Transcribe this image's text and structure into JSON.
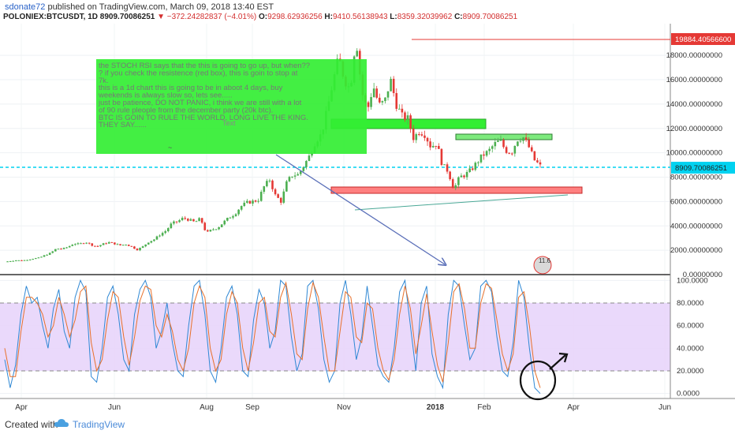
{
  "header": {
    "user": "sdonate72",
    "published": " published on TradingView.com, March 09, 2018 13:40 EST",
    "symbol": "POLONIEX:BTCUSDT, 1D",
    "last": "8909.70086251",
    "change": "▼ −372.24282837 (−4.01%)",
    "ohlc_o_label": "O:",
    "ohlc_o": "9298.62936256",
    "ohlc_h_label": "H:",
    "ohlc_h": "9410.56138943",
    "ohlc_l_label": "L:",
    "ohlc_l": "8359.32039962",
    "ohlc_c_label": "C:",
    "ohlc_c": "8909.70086251"
  },
  "colors": {
    "up": "#4caf50",
    "down": "#e53935",
    "rsi_fast": "#2f88d4",
    "rsi_slow": "#e8702a",
    "band_fill": "#e8d5fb",
    "note_bg": "#33ee33",
    "last_price": "#00d2f0",
    "resistance": "#ff8080",
    "support_box": "#7dea7d"
  },
  "annotation": {
    "lines": [
      "the STOCH RSI says that the this is going to go up, but when??",
      "? if you check the resistence (red box), this is goin to stop at",
      "7k.",
      "this is a 1d chart this is going to be in aboot 4 days, buy",
      "weekends is always slow so, lets see.....",
      "",
      "just be patience, DO NOT PANIC, i think we are still with a lot",
      "of 90 rule pleople from the december party (20k btc).",
      "",
      "BTC IS GOIN TO RULE THE WORLD. LONG LIVE THE KING.",
      "",
      "THEY SAY......"
    ],
    "text_tag": "Text",
    "marker": "11.6"
  },
  "price_labels": {
    "high_tag": "19884.40566600",
    "last_tag": "8909.70086251"
  },
  "footer": {
    "created_with": "Created with",
    "brand": "TradingView"
  },
  "chart_data": [
    {
      "type": "candlestick",
      "title": "POLONIEX:BTCUSDT, 1D",
      "x_tick_labels": [
        "Apr",
        "Jun",
        "Aug",
        "Sep",
        "Nov",
        "2018",
        "Feb",
        "Apr",
        "Jun"
      ],
      "y_tick_labels": [
        "0.00000000",
        "2000.00000000",
        "4000.00000000",
        "6000.00000000",
        "8000.00000000",
        "10000.00000000",
        "12000.00000000",
        "14000.00000000",
        "16000.00000000",
        "18000.00000000"
      ],
      "ylim": [
        0,
        20600
      ],
      "grid": true,
      "close_series": [
        [
          0,
          1050
        ],
        [
          7,
          1120
        ],
        [
          14,
          1180
        ],
        [
          21,
          1150
        ],
        [
          28,
          1230
        ],
        [
          35,
          1320
        ],
        [
          42,
          1380
        ],
        [
          49,
          1600
        ],
        [
          56,
          1780
        ],
        [
          63,
          2150
        ],
        [
          70,
          2100
        ],
        [
          77,
          2280
        ],
        [
          84,
          2550
        ],
        [
          91,
          2500
        ],
        [
          98,
          2700
        ],
        [
          105,
          2450
        ],
        [
          112,
          2300
        ],
        [
          119,
          2500
        ],
        [
          126,
          2650
        ],
        [
          133,
          2550
        ],
        [
          140,
          2400
        ],
        [
          147,
          2500
        ],
        [
          154,
          2300
        ],
        [
          161,
          2050
        ],
        [
          168,
          2300
        ],
        [
          175,
          2700
        ],
        [
          182,
          2900
        ],
        [
          189,
          3300
        ],
        [
          196,
          3600
        ],
        [
          203,
          4200
        ],
        [
          210,
          4350
        ],
        [
          217,
          4650
        ],
        [
          224,
          4500
        ],
        [
          231,
          4300
        ],
        [
          238,
          4600
        ],
        [
          245,
          3400
        ],
        [
          252,
          3700
        ],
        [
          259,
          3850
        ],
        [
          266,
          4300
        ],
        [
          273,
          4700
        ],
        [
          280,
          5000
        ],
        [
          287,
          5600
        ],
        [
          294,
          5900
        ],
        [
          301,
          6000
        ],
        [
          308,
          6100
        ],
        [
          315,
          7200
        ],
        [
          322,
          7800
        ],
        [
          329,
          6500
        ],
        [
          336,
          6000
        ],
        [
          343,
          7600
        ],
        [
          350,
          8200
        ],
        [
          357,
          8200
        ],
        [
          364,
          9000
        ],
        [
          371,
          9800
        ],
        [
          378,
          11000
        ],
        [
          385,
          11500
        ],
        [
          392,
          13500
        ],
        [
          399,
          15800
        ],
        [
          406,
          17800
        ],
        [
          413,
          16000
        ],
        [
          420,
          15200
        ],
        [
          427,
          19600
        ],
        [
          434,
          15000
        ],
        [
          441,
          13500
        ],
        [
          448,
          15500
        ],
        [
          455,
          13900
        ],
        [
          462,
          14200
        ],
        [
          469,
          16000
        ],
        [
          476,
          14000
        ],
        [
          483,
          13000
        ],
        [
          490,
          12800
        ],
        [
          497,
          11200
        ],
        [
          504,
          11800
        ],
        [
          511,
          11500
        ],
        [
          518,
          10500
        ],
        [
          525,
          10800
        ],
        [
          532,
          9000
        ],
        [
          539,
          8500
        ],
        [
          546,
          7000
        ],
        [
          553,
          8000
        ],
        [
          560,
          8200
        ],
        [
          567,
          8600
        ],
        [
          574,
          9200
        ],
        [
          581,
          9800
        ],
        [
          588,
          10100
        ],
        [
          595,
          10700
        ],
        [
          602,
          11000
        ],
        [
          609,
          10200
        ],
        [
          616,
          10000
        ],
        [
          623,
          11100
        ],
        [
          630,
          11300
        ],
        [
          637,
          10500
        ],
        [
          644,
          9400
        ],
        [
          651,
          8910
        ]
      ],
      "high": 19884.405666,
      "last": 8909.70086251
    },
    {
      "type": "line",
      "title": "Stochastic RSI",
      "y_tick_labels": [
        "0.0000",
        "20.0000",
        "40.0000",
        "60.0000",
        "80.0000",
        "100.0000"
      ],
      "ylim": [
        -5,
        104
      ],
      "bands": [
        20,
        80
      ],
      "series": [
        {
          "values": [
            30,
            5,
            25,
            70,
            95,
            80,
            85,
            60,
            40,
            75,
            92,
            55,
            40,
            85,
            100,
            90,
            15,
            10,
            40,
            85,
            95,
            70,
            30,
            20,
            70,
            92,
            100,
            85,
            40,
            55,
            80,
            45,
            20,
            15,
            60,
            95,
            100,
            70,
            20,
            10,
            40,
            85,
            95,
            70,
            20,
            15,
            65,
            92,
            80,
            40,
            55,
            100,
            95,
            50,
            20,
            35,
            95,
            100,
            75,
            30,
            10,
            20,
            80,
            100,
            70,
            30,
            50,
            95,
            60,
            25,
            15,
            10,
            40,
            90,
            100,
            60,
            20,
            80,
            95,
            35,
            15,
            5,
            70,
            100,
            95,
            60,
            30,
            40,
            95,
            100,
            90,
            50,
            20,
            15,
            45,
            100,
            85,
            40,
            5,
            0
          ]
        },
        {
          "values": [
            40,
            15,
            15,
            55,
            85,
            85,
            80,
            70,
            50,
            60,
            85,
            70,
            50,
            65,
            90,
            95,
            45,
            20,
            30,
            65,
            90,
            85,
            50,
            25,
            50,
            82,
            95,
            92,
            60,
            50,
            70,
            55,
            30,
            20,
            40,
            80,
            95,
            85,
            40,
            20,
            30,
            70,
            90,
            80,
            40,
            20,
            45,
            80,
            85,
            55,
            50,
            85,
            98,
            70,
            35,
            30,
            75,
            98,
            85,
            50,
            20,
            20,
            55,
            90,
            85,
            50,
            45,
            80,
            75,
            40,
            20,
            12,
            30,
            70,
            95,
            75,
            35,
            60,
            88,
            55,
            25,
            10,
            45,
            90,
            97,
            75,
            40,
            40,
            80,
            97,
            93,
            65,
            35,
            20,
            35,
            85,
            90,
            60,
            20,
            5
          ]
        }
      ]
    }
  ]
}
